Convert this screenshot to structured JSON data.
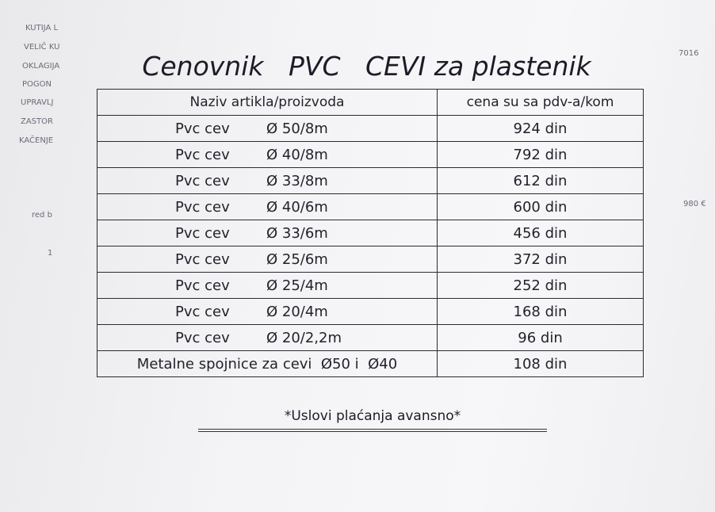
{
  "header": {
    "title": "Cenovnik   PVC   CEVI za plastenik"
  },
  "table": {
    "columns": [
      "Naziv artikla/proizvoda",
      "cena su sa pdv-a/kom"
    ],
    "rows": [
      [
        "Pvc cev",
        "Ø 50/8m",
        "924 din"
      ],
      [
        "Pvc cev",
        "Ø 40/8m",
        "792 din"
      ],
      [
        "Pvc cev",
        "Ø 33/8m",
        "612 din"
      ],
      [
        "Pvc cev",
        "Ø 40/6m",
        "600 din"
      ],
      [
        "Pvc cev",
        "Ø 33/6m",
        "456 din"
      ],
      [
        "Pvc cev",
        "Ø 25/6m",
        "372 din"
      ],
      [
        "Pvc cev",
        "Ø 25/4m",
        "252 din"
      ],
      [
        "Pvc cev",
        "Ø 20/4m",
        "168 din"
      ],
      [
        "Pvc cev",
        "Ø 20/2,2m",
        "96 din"
      ],
      [
        "Metalne spojnice za cevi  Ø50 i  Ø40",
        "108 din"
      ]
    ]
  },
  "footer": {
    "note": "*Uslovi plaćanja avansno*"
  },
  "background_texts": [
    "KUTIJA L",
    "VELIČ KU",
    "OKLAGIJA",
    "POGON",
    "UPRAVLJ",
    "ZASTOR",
    "KAČENJE",
    "red b",
    "1",
    "7016",
    "980 €"
  ]
}
